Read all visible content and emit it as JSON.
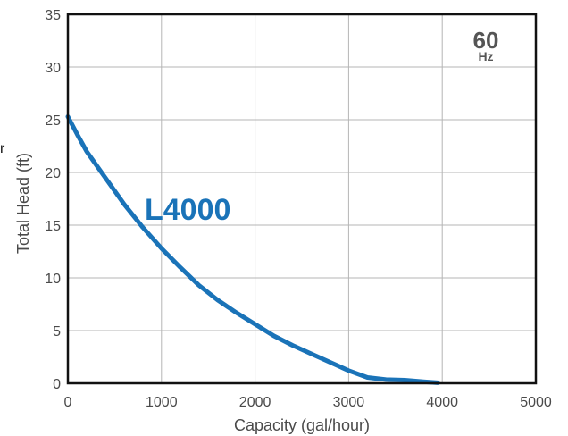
{
  "chart_data": {
    "type": "line",
    "xlabel": "Capacity (gal/hour)",
    "ylabel": "Total Head (ft)",
    "xlim": [
      0,
      5000
    ],
    "ylim": [
      0,
      35
    ],
    "x_ticks": [
      "0",
      "1000",
      "2000",
      "3000",
      "4000",
      "5000"
    ],
    "y_ticks": [
      "0",
      "5",
      "10",
      "15",
      "20",
      "25",
      "30",
      "35"
    ],
    "grid": true,
    "frequency": {
      "value": "60",
      "unit": "Hz"
    },
    "stray_text": "r",
    "series": [
      {
        "name": "L4000",
        "color": "#1a73b8",
        "x": [
          0,
          100,
          200,
          400,
          600,
          800,
          1000,
          1200,
          1400,
          1600,
          1800,
          2000,
          2200,
          2400,
          2600,
          2800,
          3000,
          3200,
          3400,
          3600,
          3800,
          3950
        ],
        "y": [
          25.3,
          23.6,
          22.0,
          19.5,
          17.0,
          14.8,
          12.8,
          11.0,
          9.3,
          7.9,
          6.7,
          5.6,
          4.5,
          3.6,
          2.8,
          2.0,
          1.2,
          0.55,
          0.35,
          0.3,
          0.15,
          0.05
        ]
      }
    ]
  }
}
